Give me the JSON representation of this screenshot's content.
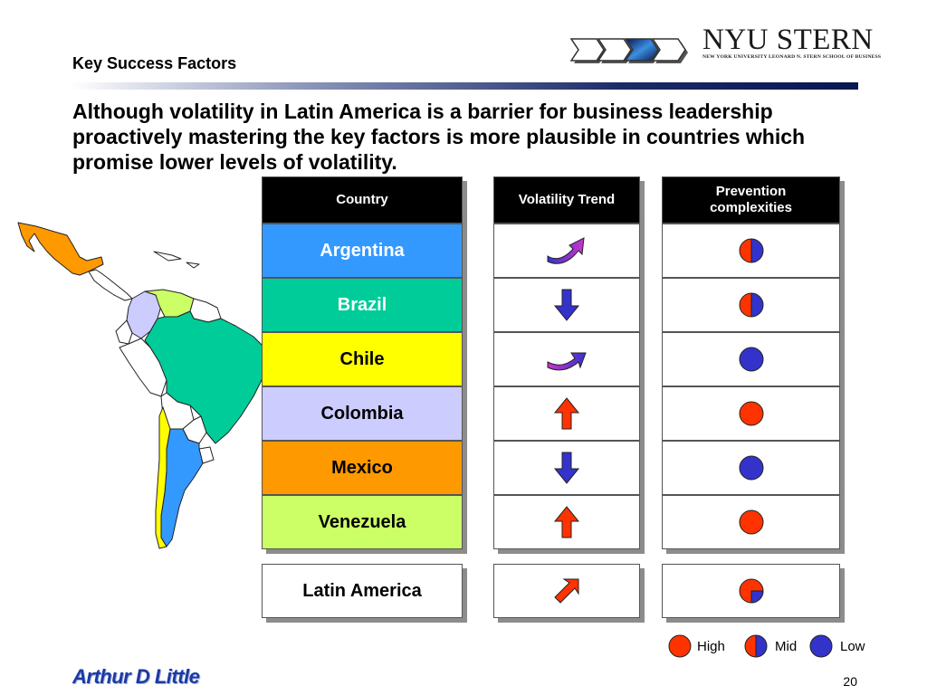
{
  "header": {
    "section_label": "Key Success Factors",
    "logo_main": "NYU STERN",
    "logo_sub": "NEW YORK UNIVERSITY LEONARD N. STERN SCHOOL OF BUSINESS"
  },
  "headline": "Although volatility in Latin America is a barrier for business leadership proactively mastering the key factors is more plausible in countries which promise lower levels of volatility.",
  "table": {
    "columns": [
      "Country",
      "Volatility Trend",
      "Prevention complexities"
    ],
    "rows": [
      {
        "country": "Argentina",
        "trend": "curved-up",
        "complexity": "mid",
        "color": "#3399ff",
        "text_color": "#ffffff"
      },
      {
        "country": "Brazil",
        "trend": "down",
        "complexity": "mid",
        "color": "#00cc99",
        "text_color": "#ffffff"
      },
      {
        "country": "Chile",
        "trend": "curved-flat",
        "complexity": "low",
        "color": "#ffff00",
        "text_color": "#000000"
      },
      {
        "country": "Colombia",
        "trend": "up",
        "complexity": "high",
        "color": "#ccccff",
        "text_color": "#000000"
      },
      {
        "country": "Mexico",
        "trend": "down",
        "complexity": "low",
        "color": "#ff9900",
        "text_color": "#000000"
      },
      {
        "country": "Venezuela",
        "trend": "up",
        "complexity": "high",
        "color": "#ccff66",
        "text_color": "#000000"
      }
    ],
    "summary": {
      "country": "Latin America",
      "trend": "diagonal-up",
      "complexity": "high-mostly"
    }
  },
  "legend": [
    {
      "key": "high",
      "label": "High"
    },
    {
      "key": "mid",
      "label": "Mid"
    },
    {
      "key": "low",
      "label": "Low"
    }
  ],
  "colors": {
    "high": "#ff3300",
    "low": "#3333cc",
    "arrow_gradient_start": "#cc33cc",
    "arrow_gradient_end": "#3333cc"
  },
  "footer": {
    "logo_text": "Arthur D Little",
    "page_number": "20"
  }
}
